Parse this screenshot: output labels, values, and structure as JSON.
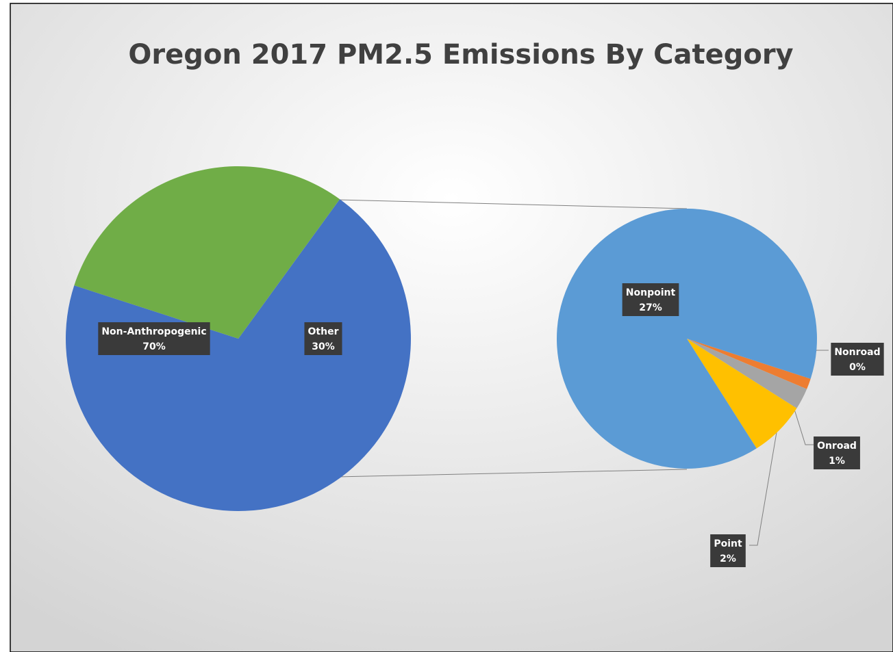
{
  "chart_data": {
    "type": "pie_of_pie",
    "title": "Oregon 2017 PM2.5 Emissions By Category",
    "categories": [
      "Non-Anthropogenic",
      "Other"
    ],
    "values": [
      70,
      30
    ],
    "value_labels": [
      "70%",
      "30%"
    ],
    "colors": [
      "#4472c4",
      "#70ad47"
    ],
    "secondary": {
      "categories": [
        "Nonroad",
        "Onroad",
        "Point",
        "Nonpoint"
      ],
      "values": [
        0.4,
        0.8,
        2.1,
        26.7
      ],
      "value_labels": [
        "0%",
        "1%",
        "2%",
        "27%"
      ],
      "colors": [
        "#ed7d31",
        "#a5a5a5",
        "#ffc000",
        "#5b9bd5"
      ]
    }
  }
}
